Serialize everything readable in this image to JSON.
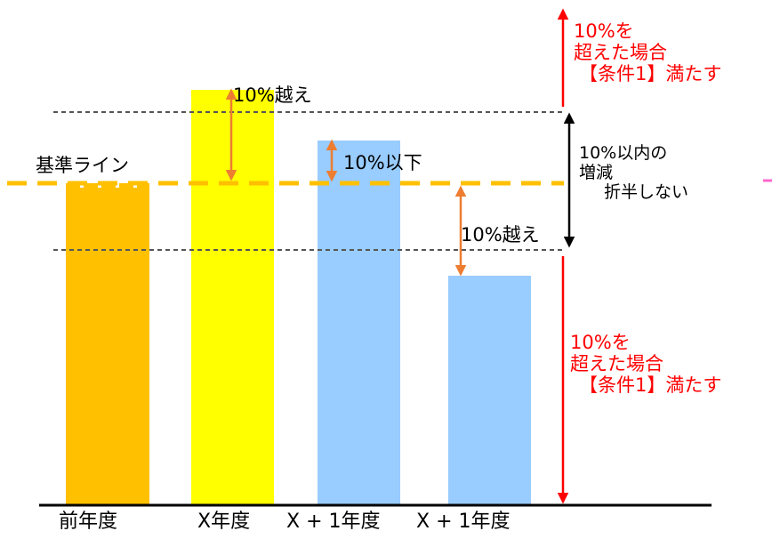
{
  "categories": [
    "前年度",
    "X年度",
    "X + 1年度",
    "X + 1年度"
  ],
  "bar_colors": [
    "#FFC000",
    "#FFFF00",
    "#99CCFF",
    "#99CCFF"
  ],
  "baseline_label": "基準ライン",
  "delta_labels": [
    "10%越え",
    "10%以下",
    "10%越え"
  ],
  "band_label": [
    "10%以内の",
    "増減",
    "折半しない"
  ],
  "above_label": [
    "10%を",
    "超えた場合",
    "【条件1】満たす"
  ],
  "below_label": [
    "10%を",
    "超えた場合",
    "【条件1】満たす"
  ],
  "colors": {
    "baseline": "#FFC000",
    "delta_arrow": "#ED7D31",
    "range_arrow": "#FF0000",
    "band_arrow": "#000000",
    "threshold_line": "#555555",
    "accent_mark": "#FF66CC"
  }
}
